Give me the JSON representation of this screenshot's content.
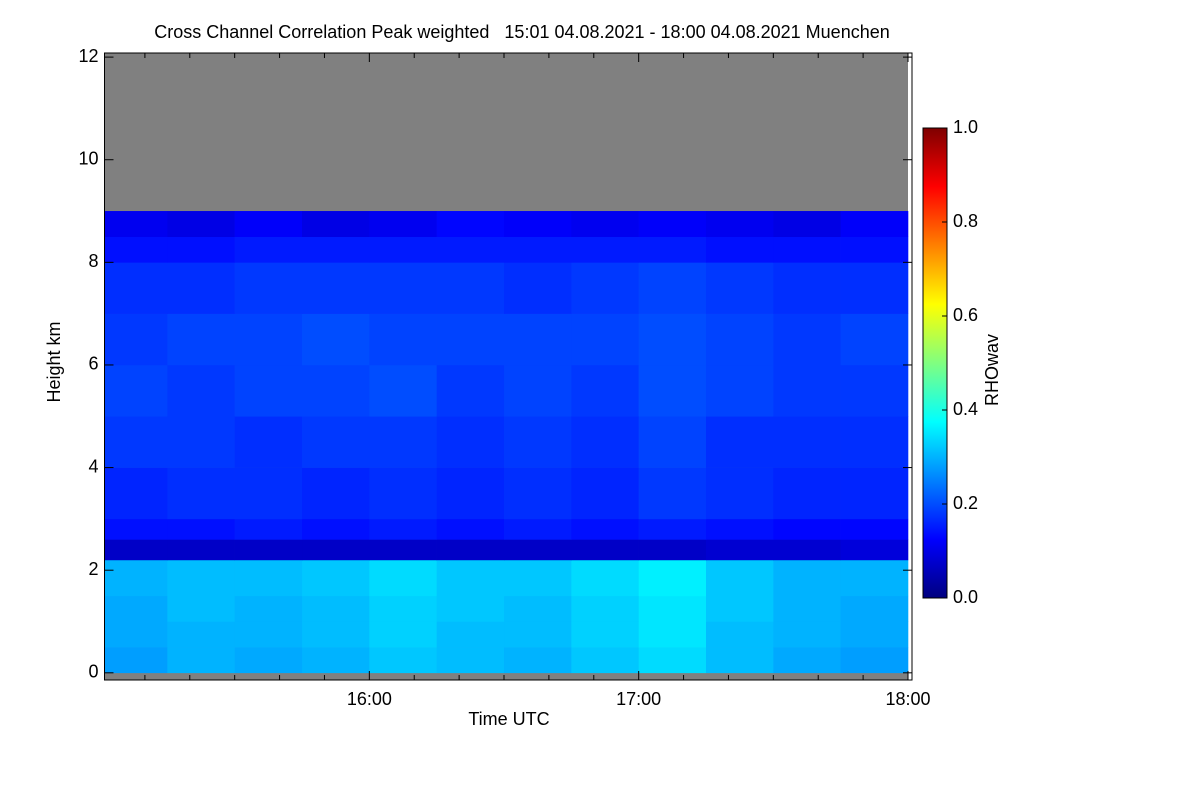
{
  "chart_data": {
    "type": "heatmap",
    "title": "Cross Channel Correlation Peak weighted   15:01 04.08.2021 - 18:00 04.08.2021 Muenchen",
    "x_label": "Time UTC",
    "y_label": "Height km",
    "colorbar_label": "RHOwav",
    "xlim": [
      901,
      1080
    ],
    "xticks": [
      {
        "value": 960,
        "label": "16:00"
      },
      {
        "value": 1020,
        "label": "17:00"
      },
      {
        "value": 1080,
        "label": "18:00"
      }
    ],
    "xminorticks": [
      910,
      920,
      930,
      940,
      950,
      970,
      980,
      990,
      1000,
      1010,
      1030,
      1040,
      1050,
      1060,
      1070
    ],
    "ylim": [
      -0.14,
      12.08
    ],
    "yticks": [
      0,
      2,
      4,
      6,
      8,
      10,
      12
    ],
    "x": [
      901,
      915,
      930,
      945,
      960,
      975,
      990,
      1005,
      1020,
      1035,
      1050,
      1065,
      1080
    ],
    "y": [
      0,
      0.5,
      1,
      1.5,
      2.2,
      2.6,
      3,
      4,
      5,
      6,
      7,
      8,
      8.5,
      9
    ],
    "z": [
      [
        0.28,
        0.3,
        0.29,
        0.3,
        0.32,
        0.31,
        0.3,
        0.32,
        0.34,
        0.31,
        0.29,
        0.28
      ],
      [
        0.29,
        0.3,
        0.3,
        0.31,
        0.33,
        0.31,
        0.31,
        0.33,
        0.35,
        0.31,
        0.3,
        0.29
      ],
      [
        0.29,
        0.31,
        0.3,
        0.31,
        0.33,
        0.32,
        0.31,
        0.33,
        0.35,
        0.32,
        0.3,
        0.29
      ],
      [
        0.3,
        0.31,
        0.31,
        0.32,
        0.34,
        0.32,
        0.32,
        0.34,
        0.36,
        0.32,
        0.3,
        0.3
      ],
      [
        0.07,
        0.07,
        0.07,
        0.07,
        0.07,
        0.07,
        0.07,
        0.07,
        0.07,
        0.08,
        0.08,
        0.09
      ],
      [
        0.14,
        0.14,
        0.15,
        0.14,
        0.15,
        0.14,
        0.15,
        0.14,
        0.15,
        0.14,
        0.13,
        0.13
      ],
      [
        0.16,
        0.17,
        0.17,
        0.16,
        0.17,
        0.16,
        0.17,
        0.16,
        0.18,
        0.17,
        0.16,
        0.16
      ],
      [
        0.18,
        0.18,
        0.17,
        0.18,
        0.18,
        0.17,
        0.18,
        0.17,
        0.19,
        0.17,
        0.17,
        0.17
      ],
      [
        0.19,
        0.18,
        0.19,
        0.19,
        0.2,
        0.18,
        0.19,
        0.18,
        0.2,
        0.19,
        0.18,
        0.18
      ],
      [
        0.18,
        0.19,
        0.19,
        0.2,
        0.19,
        0.19,
        0.19,
        0.19,
        0.2,
        0.19,
        0.18,
        0.19
      ],
      [
        0.17,
        0.17,
        0.18,
        0.18,
        0.18,
        0.18,
        0.17,
        0.18,
        0.19,
        0.18,
        0.17,
        0.17
      ],
      [
        0.14,
        0.14,
        0.15,
        0.15,
        0.15,
        0.15,
        0.15,
        0.15,
        0.15,
        0.14,
        0.14,
        0.14
      ],
      [
        0.11,
        0.1,
        0.12,
        0.1,
        0.11,
        0.13,
        0.12,
        0.11,
        0.12,
        0.11,
        0.1,
        0.12
      ]
    ],
    "null_color": "#808080",
    "colormap": [
      "#00007f",
      "#0000ff",
      "#0080ff",
      "#00ffff",
      "#80ff80",
      "#ffff00",
      "#ff8000",
      "#ff0000",
      "#7f0000"
    ],
    "clim": [
      0,
      1
    ],
    "cticks": [
      {
        "value": 0,
        "label": "0.0"
      },
      {
        "value": 0.2,
        "label": "0.2"
      },
      {
        "value": 0.4,
        "label": "0.4"
      },
      {
        "value": 0.6,
        "label": "0.6"
      },
      {
        "value": 0.8,
        "label": "0.8"
      },
      {
        "value": 1,
        "label": "1.0"
      }
    ]
  }
}
